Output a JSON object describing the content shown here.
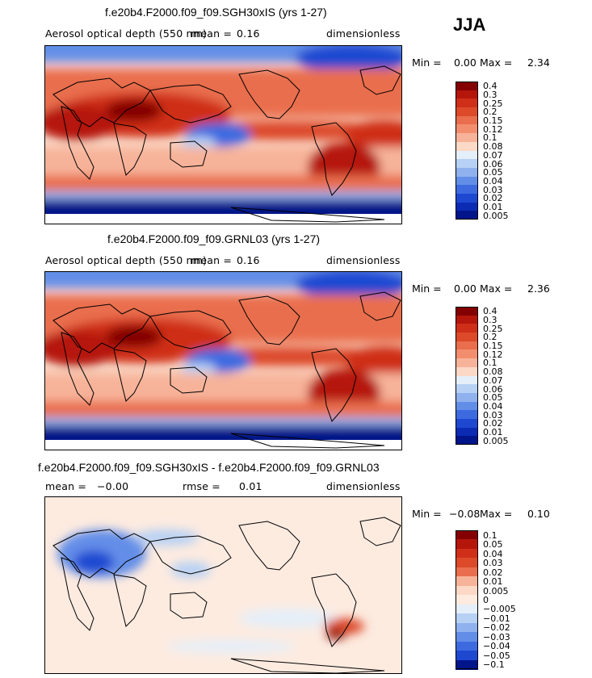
{
  "season": "JJA",
  "colors": {
    "ramp_aod": [
      "#840000",
      "#b5160b",
      "#cf2f19",
      "#dc4a2a",
      "#e96e4e",
      "#f28e6e",
      "#f7b39a",
      "#fcd9c6",
      "#e5eff9",
      "#b7d1f4",
      "#8fb2ee",
      "#638ee8",
      "#3e6ae0",
      "#1f48d1",
      "#0c2bb4",
      "#001589"
    ],
    "land": "#000000",
    "missing": "#ffffff"
  },
  "chart_data": [
    {
      "type": "heatmap",
      "id": "panel1",
      "title": "f.e20b4.F2000.f09_f09.SGH30xIS (yrs 1-27)",
      "variable": "Aerosol optical depth (550 nm)",
      "mean_label": "mean =",
      "mean": "0.16",
      "units": "dimensionless",
      "min_label": "Min =",
      "min": "0.00",
      "max_label": "Max =",
      "max": "2.34",
      "levels": [
        "0.4",
        "0.3",
        "0.25",
        "0.2",
        "0.15",
        "0.12",
        "0.1",
        "0.08",
        "0.07",
        "0.06",
        "0.05",
        "0.04",
        "0.03",
        "0.02",
        "0.01",
        "0.005"
      ]
    },
    {
      "type": "heatmap",
      "id": "panel2",
      "title": "f.e20b4.F2000.f09_f09.GRNL03 (yrs 1-27)",
      "variable": "Aerosol optical depth (550 nm)",
      "mean_label": "mean =",
      "mean": "0.16",
      "units": "dimensionless",
      "min_label": "Min =",
      "min": "0.00",
      "max_label": "Max =",
      "max": "2.36",
      "levels": [
        "0.4",
        "0.3",
        "0.25",
        "0.2",
        "0.15",
        "0.12",
        "0.1",
        "0.08",
        "0.07",
        "0.06",
        "0.05",
        "0.04",
        "0.03",
        "0.02",
        "0.01",
        "0.005"
      ]
    },
    {
      "type": "heatmap",
      "id": "panel3",
      "title": "f.e20b4.F2000.f09_f09.SGH30xIS - f.e20b4.F2000.f09_f09.GRNL03",
      "mean_label": "mean =",
      "mean": "−0.00",
      "rmse_label": "rmse =",
      "rmse": "0.01",
      "units": "dimensionless",
      "min_label": "Min =",
      "min": "−0.08",
      "max_label": "Max =",
      "max": "0.10",
      "levels": [
        "0.1",
        "0.05",
        "0.04",
        "0.03",
        "0.02",
        "0.01",
        "0.005",
        "0",
        "−0.005",
        "−0.01",
        "−0.02",
        "−0.03",
        "−0.04",
        "−0.05",
        "−0.1"
      ]
    }
  ]
}
